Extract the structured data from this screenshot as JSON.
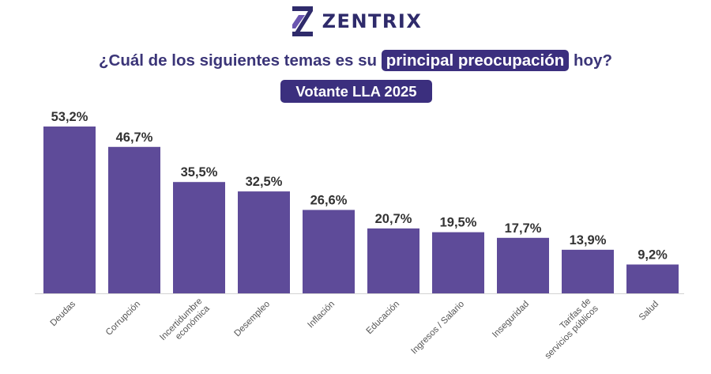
{
  "brand": {
    "name": "ZENTRIX",
    "logo_icon": "zentrix-z-logo-icon",
    "color": "#2f2b6b"
  },
  "header": {
    "question_before": "¿Cuál de los siguientes temas es su ",
    "question_highlight": "principal preocupación",
    "question_after": " hoy?",
    "subtitle": "Votante LLA 2025"
  },
  "colors": {
    "bar": "#5e4b99",
    "accent": "#3b2f7e",
    "text": "#3b3578"
  },
  "chart_data": {
    "type": "bar",
    "categories": [
      "Deudas",
      "Corrupción",
      "Incertidumbre económica",
      "Desempleo",
      "Inflación",
      "Educación",
      "Ingresos / Salario",
      "Inseguridad",
      "Tarifas de servicios públicos",
      "Salud"
    ],
    "values": [
      53.2,
      46.7,
      35.5,
      32.5,
      26.6,
      20.7,
      19.5,
      17.7,
      13.9,
      9.2
    ],
    "value_labels": [
      "53,2%",
      "46,7%",
      "35,5%",
      "32,5%",
      "26,6%",
      "20,7%",
      "19,5%",
      "17,7%",
      "13,9%",
      "9,2%"
    ],
    "title": "¿Cuál de los siguientes temas es su principal preocupación hoy?",
    "subtitle": "Votante LLA 2025",
    "xlabel": "",
    "ylabel": "",
    "ylim": [
      0,
      53.2
    ],
    "grid": false,
    "legend": "none"
  }
}
